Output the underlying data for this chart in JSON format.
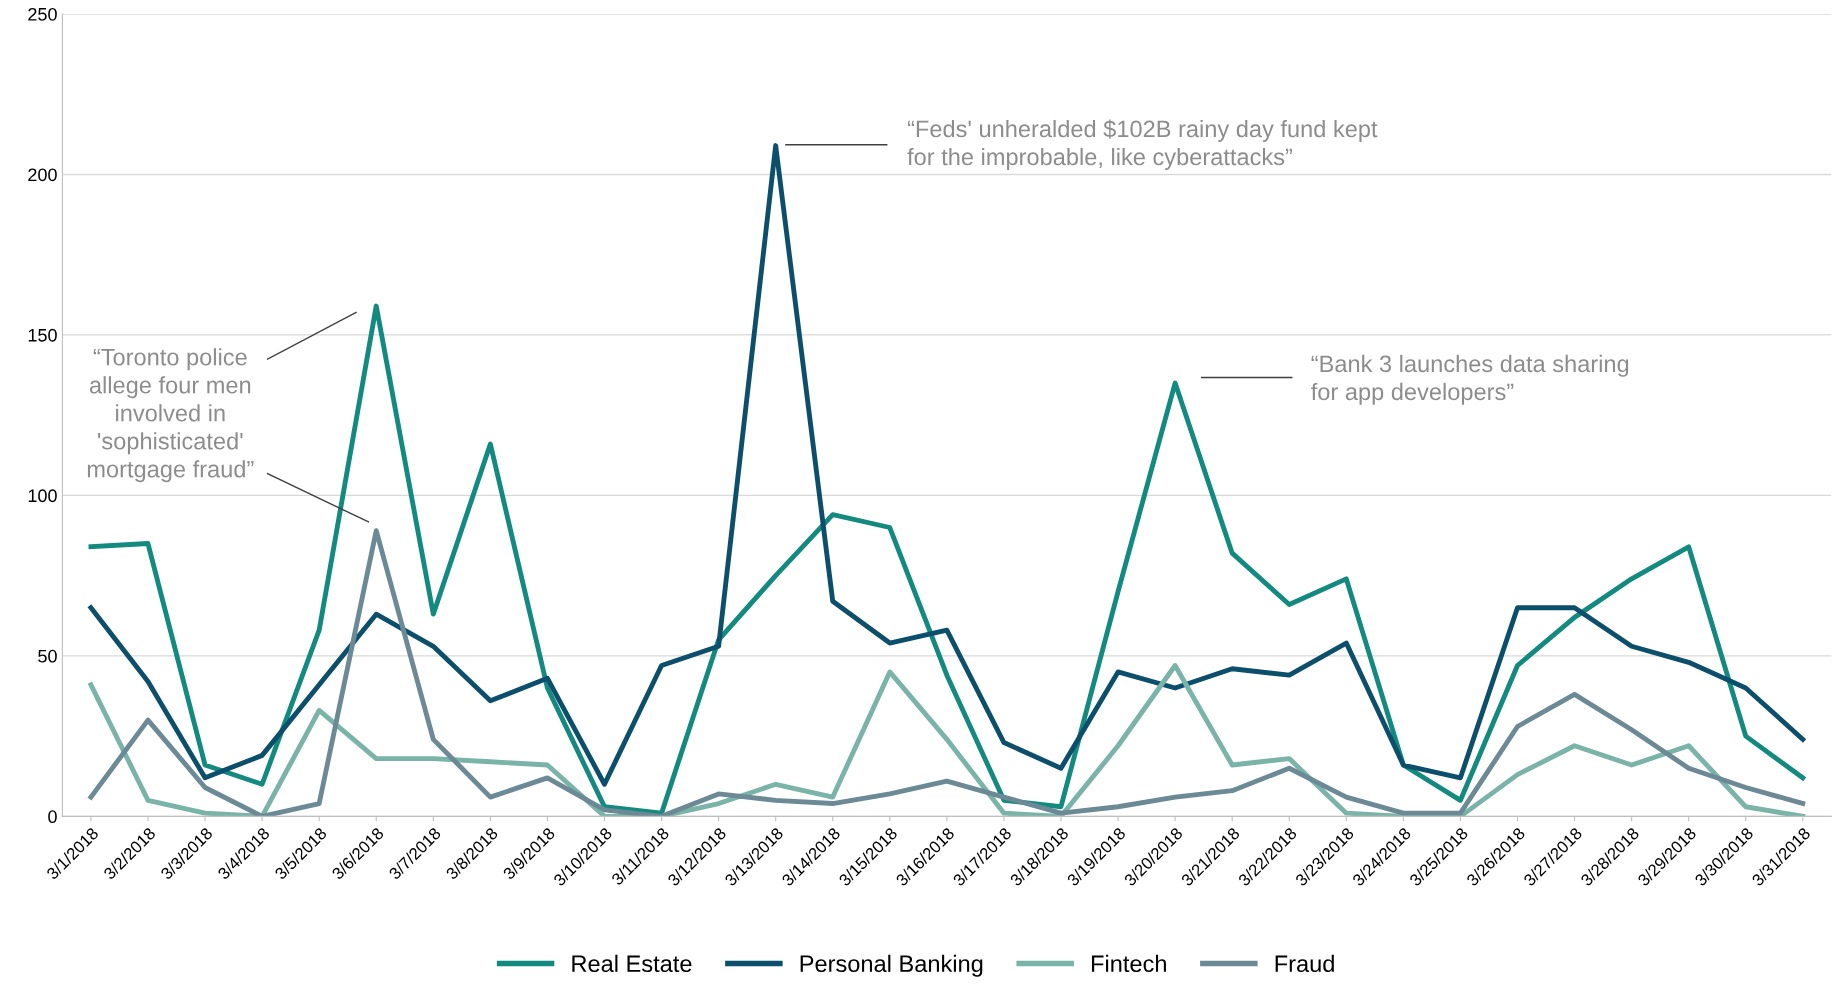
{
  "chart_data": {
    "type": "line",
    "categories": [
      "3/1/2018",
      "3/2/2018",
      "3/3/2018",
      "3/4/2018",
      "3/5/2018",
      "3/6/2018",
      "3/7/2018",
      "3/8/2018",
      "3/9/2018",
      "3/10/2018",
      "3/11/2018",
      "3/12/2018",
      "3/13/2018",
      "3/14/2018",
      "3/15/2018",
      "3/16/2018",
      "3/17/2018",
      "3/18/2018",
      "3/19/2018",
      "3/20/2018",
      "3/21/2018",
      "3/22/2018",
      "3/23/2018",
      "3/24/2018",
      "3/25/2018",
      "3/26/2018",
      "3/27/2018",
      "3/28/2018",
      "3/29/2018",
      "3/30/2018",
      "3/31/2018"
    ],
    "series": [
      {
        "name": "Real Estate",
        "color": "#138a80",
        "values": [
          84,
          85,
          16,
          10,
          58,
          159,
          63,
          116,
          40,
          3,
          1,
          55,
          75,
          94,
          90,
          44,
          5,
          3,
          70,
          135,
          82,
          66,
          74,
          16,
          5,
          47,
          62,
          74,
          84,
          25,
          12
        ]
      },
      {
        "name": "Personal Banking",
        "color": "#0b4f6c",
        "values": [
          65,
          42,
          12,
          19,
          41,
          63,
          53,
          36,
          43,
          10,
          47,
          53,
          209,
          67,
          54,
          58,
          23,
          15,
          45,
          40,
          46,
          44,
          54,
          16,
          12,
          65,
          65,
          53,
          48,
          40,
          24
        ]
      },
      {
        "name": "Fintech",
        "color": "#7ab3a8",
        "values": [
          41,
          5,
          1,
          0,
          33,
          18,
          18,
          17,
          16,
          0,
          0,
          4,
          10,
          6,
          45,
          24,
          1,
          0,
          22,
          47,
          16,
          18,
          1,
          0,
          0,
          13,
          22,
          16,
          22,
          3,
          0
        ]
      },
      {
        "name": "Fraud",
        "color": "#6b8a96",
        "values": [
          6,
          30,
          9,
          0,
          4,
          89,
          24,
          6,
          12,
          2,
          0,
          7,
          5,
          4,
          7,
          11,
          6,
          1,
          3,
          6,
          8,
          15,
          6,
          1,
          1,
          28,
          38,
          27,
          15,
          9,
          4
        ]
      }
    ],
    "ylim": [
      0,
      250
    ],
    "yticks": [
      0,
      50,
      100,
      150,
      200,
      250
    ],
    "grid": "y",
    "legend": "bottom",
    "marker": "none",
    "line_style": "solid",
    "annotations": [
      "“Toronto police\nallege four men\ninvolved in\n'sophisticated'\nmortgage fraud”",
      "“Feds' unheralded $102B rainy day fund kept\nfor the improbable, like cyberattacks”",
      "“Bank 3 launches data sharing\nfor app developers”"
    ]
  }
}
